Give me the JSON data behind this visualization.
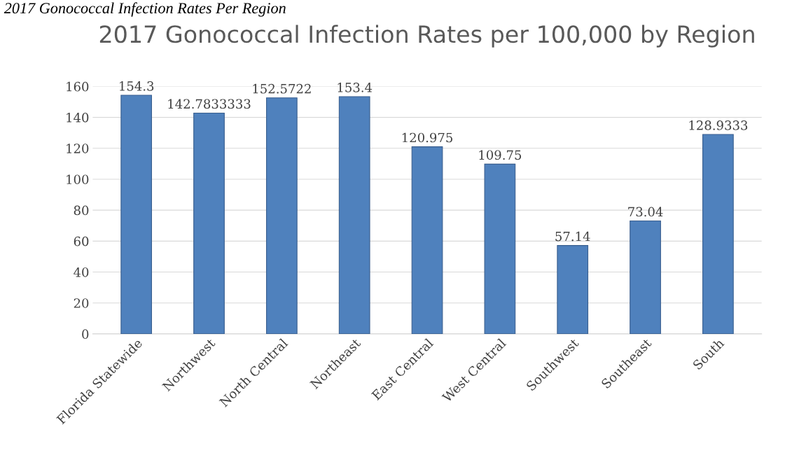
{
  "chart_data": {
    "type": "bar",
    "title": "2017 Gonococcal Infection Rates per 100,000 by Region",
    "annotations": [
      "2017 Gonococcal Infection Rates Per Region"
    ],
    "categories": [
      "Florida Statewide",
      "Northwest",
      "North Central",
      "Northeast",
      "East Central",
      "West Central",
      "Southwest",
      "Southeast",
      "South"
    ],
    "values": [
      154.3,
      142.7833333,
      152.5722,
      153.4,
      120.975,
      109.75,
      57.14,
      73.04,
      128.9333
    ],
    "color": "#4f81bd",
    "ylim": [
      0,
      160
    ],
    "yticks": [
      0,
      20,
      40,
      60,
      80,
      100,
      120,
      140,
      160
    ],
    "grid": "y",
    "data_labels": true
  }
}
